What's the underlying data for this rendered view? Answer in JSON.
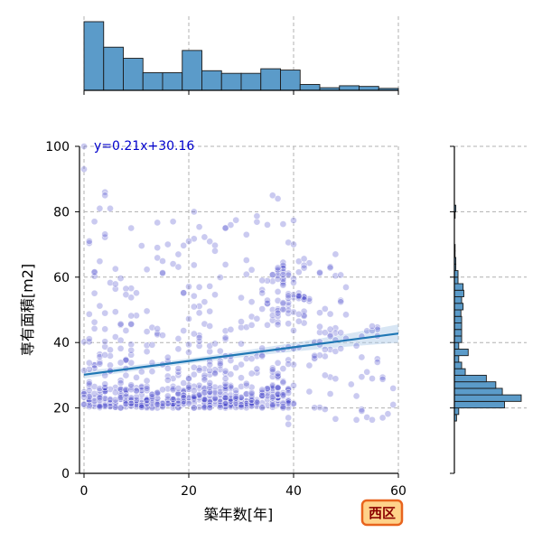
{
  "chart_data": {
    "type": "scatter",
    "title": "",
    "xlabel": "築年数[年]",
    "ylabel": "専有面積[m2]",
    "xlim": [
      0,
      60
    ],
    "ylim": [
      0,
      100
    ],
    "x_ticks": [
      0,
      20,
      40,
      60
    ],
    "y_ticks": [
      0,
      20,
      40,
      60,
      80,
      100
    ],
    "grid": true,
    "colors": {
      "points": "#4040c8",
      "regression": "#1f77b4",
      "ci_band": "#a9c8e6",
      "hist_fill": "#5b9bc9",
      "badge_fill": "#ffd28a",
      "badge_border": "#e8641e"
    },
    "regression": {
      "equation_text": "y=0.21x+30.16",
      "slope": 0.21,
      "intercept": 30.16,
      "ci_halfwidth_min": 0.8,
      "ci_halfwidth_max": 2.8
    },
    "badge_label": "西区",
    "scatter_clusters": [
      {
        "x": [
          0,
          40
        ],
        "y": [
          20,
          23
        ],
        "n": 260
      },
      {
        "x": [
          0,
          40
        ],
        "y": [
          23,
          27
        ],
        "n": 170
      },
      {
        "x": [
          0,
          40
        ],
        "y": [
          27,
          35
        ],
        "n": 90
      },
      {
        "x": [
          0,
          50
        ],
        "y": [
          35,
          45
        ],
        "n": 80
      },
      {
        "x": [
          0,
          50
        ],
        "y": [
          45,
          66
        ],
        "n": 110
      },
      {
        "x": [
          0,
          40
        ],
        "y": [
          66,
          80
        ],
        "n": 20
      },
      {
        "x": [
          36,
          42
        ],
        "y": [
          48,
          65
        ],
        "n": 50
      },
      {
        "x": [
          42,
          59
        ],
        "y": [
          16,
          45
        ],
        "n": 30
      }
    ],
    "scatter_points": [
      {
        "x": 0,
        "y": 93
      },
      {
        "x": 0,
        "y": 100
      },
      {
        "x": 4,
        "y": 86
      },
      {
        "x": 4,
        "y": 85
      },
      {
        "x": 3,
        "y": 81
      },
      {
        "x": 5,
        "y": 81
      },
      {
        "x": 17,
        "y": 77
      },
      {
        "x": 21,
        "y": 80
      },
      {
        "x": 36,
        "y": 85
      },
      {
        "x": 37,
        "y": 84
      },
      {
        "x": 35,
        "y": 76
      },
      {
        "x": 40,
        "y": 70
      },
      {
        "x": 31,
        "y": 73
      },
      {
        "x": 27,
        "y": 75
      },
      {
        "x": 48,
        "y": 67
      },
      {
        "x": 1,
        "y": 71
      },
      {
        "x": 16,
        "y": 70
      },
      {
        "x": 14,
        "y": 69
      },
      {
        "x": 20,
        "y": 71
      },
      {
        "x": 25,
        "y": 68
      },
      {
        "x": 2,
        "y": 77
      },
      {
        "x": 9,
        "y": 75
      },
      {
        "x": 57,
        "y": 17
      },
      {
        "x": 59,
        "y": 21
      },
      {
        "x": 59,
        "y": 26
      },
      {
        "x": 55,
        "y": 29
      },
      {
        "x": 56,
        "y": 34
      },
      {
        "x": 54,
        "y": 31
      },
      {
        "x": 52,
        "y": 39
      },
      {
        "x": 56,
        "y": 42
      },
      {
        "x": 55,
        "y": 45
      },
      {
        "x": 49,
        "y": 43
      },
      {
        "x": 38,
        "y": 24
      },
      {
        "x": 38,
        "y": 20
      },
      {
        "x": 39,
        "y": 15
      },
      {
        "x": 39,
        "y": 17
      },
      {
        "x": 43,
        "y": 33
      },
      {
        "x": 44,
        "y": 36
      },
      {
        "x": 46,
        "y": 30
      },
      {
        "x": 43,
        "y": 25
      }
    ],
    "hist_x": {
      "bin_edges": [
        0,
        3.75,
        7.5,
        11.25,
        15,
        18.75,
        22.5,
        26.25,
        30,
        33.75,
        37.5,
        41.25,
        45,
        48.75,
        52.5,
        56.25,
        60
      ],
      "counts": [
        105,
        66,
        49,
        27,
        27,
        61,
        30,
        26,
        26,
        33,
        31,
        9,
        4,
        7,
        6,
        3
      ]
    },
    "hist_y": {
      "bin_edges": [
        16,
        18,
        20,
        22,
        24,
        26,
        28,
        30,
        32,
        34,
        36,
        38,
        40,
        42,
        44,
        46,
        48,
        50,
        52,
        54,
        56,
        58,
        60,
        62,
        64,
        66,
        68,
        70,
        72,
        74,
        76,
        78,
        80,
        82
      ],
      "counts": [
        3,
        6,
        69,
        92,
        66,
        57,
        44,
        15,
        10,
        6,
        19,
        6,
        10,
        10,
        10,
        10,
        9,
        12,
        10,
        13,
        12,
        5,
        5,
        2,
        2,
        1,
        1,
        0,
        0,
        0,
        0,
        1,
        2
      ]
    }
  }
}
